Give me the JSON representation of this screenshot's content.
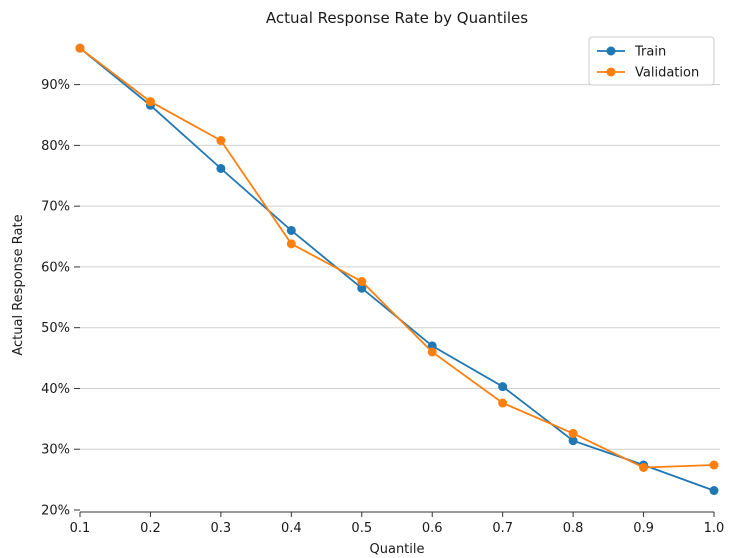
{
  "chart_data": {
    "type": "line",
    "title": "Actual Response Rate by Quantiles",
    "xlabel": "Quantile",
    "ylabel": "Actual Response Rate",
    "x": [
      0.1,
      0.2,
      0.3,
      0.4,
      0.5,
      0.6,
      0.7,
      0.8,
      0.9,
      1.0
    ],
    "x_ticks": [
      "0.1",
      "0.2",
      "0.3",
      "0.4",
      "0.5",
      "0.6",
      "0.7",
      "0.8",
      "0.9",
      "1.0"
    ],
    "xlim": [
      0.1,
      1.0
    ],
    "y_ticks": [
      {
        "value": 20,
        "label": "20%"
      },
      {
        "value": 30,
        "label": "30%"
      },
      {
        "value": 40,
        "label": "40%"
      },
      {
        "value": 50,
        "label": "50%"
      },
      {
        "value": 60,
        "label": "60%"
      },
      {
        "value": 70,
        "label": "70%"
      },
      {
        "value": 80,
        "label": "80%"
      },
      {
        "value": 90,
        "label": "90%"
      }
    ],
    "ylim": [
      20,
      98
    ],
    "grid": "horizontal",
    "legend_position": "top-right",
    "series": [
      {
        "name": "Train",
        "color": "#1f77b4",
        "values": [
          96.0,
          86.6,
          76.2,
          66.0,
          56.5,
          47.0,
          40.3,
          31.4,
          27.4,
          23.2
        ]
      },
      {
        "name": "Validation",
        "color": "#ff7f0e",
        "values": [
          96.0,
          87.2,
          80.8,
          63.8,
          57.6,
          46.0,
          37.6,
          32.6,
          27.0,
          27.4
        ]
      }
    ]
  }
}
